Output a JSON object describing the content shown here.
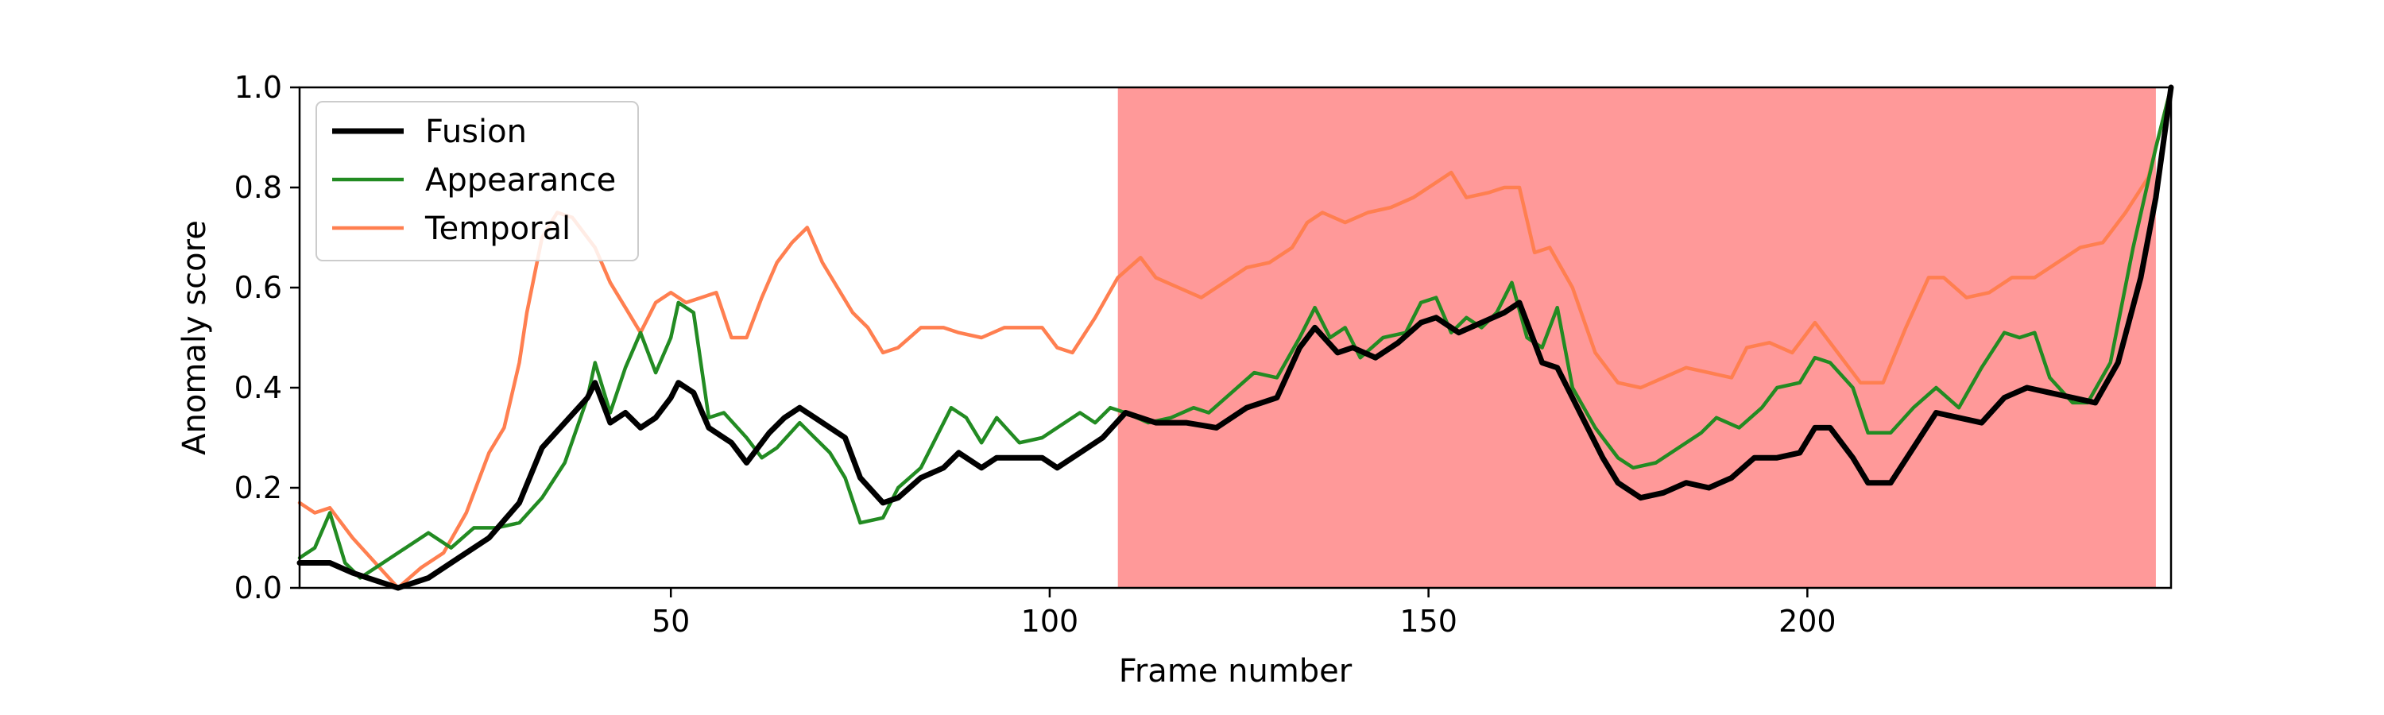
{
  "chart_data": {
    "type": "line",
    "title": "",
    "xlabel": "Frame number",
    "ylabel": "Anomaly score",
    "xlim": [
      1,
      248
    ],
    "ylim": [
      0,
      1
    ],
    "xticks": [
      50,
      100,
      150,
      200
    ],
    "yticks": [
      "0.0",
      "0.2",
      "0.4",
      "0.6",
      "0.8",
      "1.0"
    ],
    "grid": false,
    "legend_position": "top-left",
    "shaded_region": {
      "x_start": 109,
      "x_end": 246,
      "color": "#ff9999"
    },
    "series": [
      {
        "name": "Fusion",
        "color": "#000000",
        "points": [
          [
            1,
            0.05
          ],
          [
            5,
            0.05
          ],
          [
            8,
            0.03
          ],
          [
            10,
            0.02
          ],
          [
            14,
            0.0
          ],
          [
            18,
            0.02
          ],
          [
            22,
            0.06
          ],
          [
            26,
            0.1
          ],
          [
            30,
            0.17
          ],
          [
            33,
            0.28
          ],
          [
            36,
            0.33
          ],
          [
            39,
            0.38
          ],
          [
            40,
            0.41
          ],
          [
            42,
            0.33
          ],
          [
            44,
            0.35
          ],
          [
            46,
            0.32
          ],
          [
            48,
            0.34
          ],
          [
            50,
            0.38
          ],
          [
            51,
            0.41
          ],
          [
            53,
            0.39
          ],
          [
            55,
            0.32
          ],
          [
            58,
            0.29
          ],
          [
            60,
            0.25
          ],
          [
            63,
            0.31
          ],
          [
            65,
            0.34
          ],
          [
            67,
            0.36
          ],
          [
            70,
            0.33
          ],
          [
            73,
            0.3
          ],
          [
            75,
            0.22
          ],
          [
            78,
            0.17
          ],
          [
            80,
            0.18
          ],
          [
            83,
            0.22
          ],
          [
            86,
            0.24
          ],
          [
            88,
            0.27
          ],
          [
            91,
            0.24
          ],
          [
            93,
            0.26
          ],
          [
            96,
            0.26
          ],
          [
            99,
            0.26
          ],
          [
            101,
            0.24
          ],
          [
            104,
            0.27
          ],
          [
            107,
            0.3
          ],
          [
            110,
            0.35
          ],
          [
            114,
            0.33
          ],
          [
            118,
            0.33
          ],
          [
            122,
            0.32
          ],
          [
            126,
            0.36
          ],
          [
            130,
            0.38
          ],
          [
            133,
            0.48
          ],
          [
            135,
            0.52
          ],
          [
            138,
            0.47
          ],
          [
            140,
            0.48
          ],
          [
            143,
            0.46
          ],
          [
            146,
            0.49
          ],
          [
            149,
            0.53
          ],
          [
            151,
            0.54
          ],
          [
            154,
            0.51
          ],
          [
            157,
            0.53
          ],
          [
            160,
            0.55
          ],
          [
            162,
            0.57
          ],
          [
            165,
            0.45
          ],
          [
            167,
            0.44
          ],
          [
            170,
            0.35
          ],
          [
            173,
            0.26
          ],
          [
            175,
            0.21
          ],
          [
            178,
            0.18
          ],
          [
            181,
            0.19
          ],
          [
            184,
            0.21
          ],
          [
            187,
            0.2
          ],
          [
            190,
            0.22
          ],
          [
            193,
            0.26
          ],
          [
            196,
            0.26
          ],
          [
            199,
            0.27
          ],
          [
            201,
            0.32
          ],
          [
            203,
            0.32
          ],
          [
            206,
            0.26
          ],
          [
            208,
            0.21
          ],
          [
            211,
            0.21
          ],
          [
            214,
            0.28
          ],
          [
            217,
            0.35
          ],
          [
            220,
            0.34
          ],
          [
            223,
            0.33
          ],
          [
            226,
            0.38
          ],
          [
            229,
            0.4
          ],
          [
            232,
            0.39
          ],
          [
            235,
            0.38
          ],
          [
            238,
            0.37
          ],
          [
            241,
            0.45
          ],
          [
            244,
            0.62
          ],
          [
            246,
            0.78
          ],
          [
            248,
            1.0
          ]
        ]
      },
      {
        "name": "Appearance",
        "color": "#228b22",
        "points": [
          [
            1,
            0.06
          ],
          [
            3,
            0.08
          ],
          [
            5,
            0.15
          ],
          [
            7,
            0.05
          ],
          [
            9,
            0.02
          ],
          [
            12,
            0.05
          ],
          [
            15,
            0.08
          ],
          [
            18,
            0.11
          ],
          [
            21,
            0.08
          ],
          [
            24,
            0.12
          ],
          [
            27,
            0.12
          ],
          [
            30,
            0.13
          ],
          [
            33,
            0.18
          ],
          [
            36,
            0.25
          ],
          [
            39,
            0.38
          ],
          [
            40,
            0.45
          ],
          [
            42,
            0.35
          ],
          [
            44,
            0.44
          ],
          [
            46,
            0.51
          ],
          [
            48,
            0.43
          ],
          [
            50,
            0.5
          ],
          [
            51,
            0.57
          ],
          [
            53,
            0.55
          ],
          [
            55,
            0.34
          ],
          [
            57,
            0.35
          ],
          [
            60,
            0.3
          ],
          [
            62,
            0.26
          ],
          [
            64,
            0.28
          ],
          [
            67,
            0.33
          ],
          [
            69,
            0.3
          ],
          [
            71,
            0.27
          ],
          [
            73,
            0.22
          ],
          [
            75,
            0.13
          ],
          [
            78,
            0.14
          ],
          [
            80,
            0.2
          ],
          [
            83,
            0.24
          ],
          [
            85,
            0.3
          ],
          [
            87,
            0.36
          ],
          [
            89,
            0.34
          ],
          [
            91,
            0.29
          ],
          [
            93,
            0.34
          ],
          [
            96,
            0.29
          ],
          [
            99,
            0.3
          ],
          [
            101,
            0.32
          ],
          [
            104,
            0.35
          ],
          [
            106,
            0.33
          ],
          [
            108,
            0.36
          ],
          [
            110,
            0.35
          ],
          [
            113,
            0.33
          ],
          [
            116,
            0.34
          ],
          [
            119,
            0.36
          ],
          [
            121,
            0.35
          ],
          [
            124,
            0.39
          ],
          [
            127,
            0.43
          ],
          [
            130,
            0.42
          ],
          [
            133,
            0.5
          ],
          [
            135,
            0.56
          ],
          [
            137,
            0.5
          ],
          [
            139,
            0.52
          ],
          [
            141,
            0.46
          ],
          [
            144,
            0.5
          ],
          [
            147,
            0.51
          ],
          [
            149,
            0.57
          ],
          [
            151,
            0.58
          ],
          [
            153,
            0.51
          ],
          [
            155,
            0.54
          ],
          [
            157,
            0.52
          ],
          [
            159,
            0.55
          ],
          [
            161,
            0.61
          ],
          [
            163,
            0.5
          ],
          [
            165,
            0.48
          ],
          [
            167,
            0.56
          ],
          [
            169,
            0.4
          ],
          [
            172,
            0.32
          ],
          [
            175,
            0.26
          ],
          [
            177,
            0.24
          ],
          [
            180,
            0.25
          ],
          [
            183,
            0.28
          ],
          [
            186,
            0.31
          ],
          [
            188,
            0.34
          ],
          [
            191,
            0.32
          ],
          [
            194,
            0.36
          ],
          [
            196,
            0.4
          ],
          [
            199,
            0.41
          ],
          [
            201,
            0.46
          ],
          [
            203,
            0.45
          ],
          [
            206,
            0.4
          ],
          [
            208,
            0.31
          ],
          [
            211,
            0.31
          ],
          [
            214,
            0.36
          ],
          [
            217,
            0.4
          ],
          [
            220,
            0.36
          ],
          [
            223,
            0.44
          ],
          [
            226,
            0.51
          ],
          [
            228,
            0.5
          ],
          [
            230,
            0.51
          ],
          [
            232,
            0.42
          ],
          [
            235,
            0.37
          ],
          [
            237,
            0.37
          ],
          [
            240,
            0.45
          ],
          [
            243,
            0.68
          ],
          [
            246,
            0.88
          ],
          [
            248,
            1.0
          ]
        ]
      },
      {
        "name": "Temporal",
        "color": "#ff7f50",
        "points": [
          [
            1,
            0.17
          ],
          [
            3,
            0.15
          ],
          [
            5,
            0.16
          ],
          [
            8,
            0.1
          ],
          [
            11,
            0.05
          ],
          [
            14,
            0.0
          ],
          [
            17,
            0.04
          ],
          [
            20,
            0.07
          ],
          [
            23,
            0.15
          ],
          [
            26,
            0.27
          ],
          [
            28,
            0.32
          ],
          [
            30,
            0.45
          ],
          [
            31,
            0.55
          ],
          [
            33,
            0.7
          ],
          [
            35,
            0.75
          ],
          [
            37,
            0.74
          ],
          [
            40,
            0.68
          ],
          [
            42,
            0.61
          ],
          [
            44,
            0.56
          ],
          [
            46,
            0.51
          ],
          [
            48,
            0.57
          ],
          [
            50,
            0.59
          ],
          [
            52,
            0.57
          ],
          [
            54,
            0.58
          ],
          [
            56,
            0.59
          ],
          [
            58,
            0.5
          ],
          [
            60,
            0.5
          ],
          [
            62,
            0.58
          ],
          [
            64,
            0.65
          ],
          [
            66,
            0.69
          ],
          [
            68,
            0.72
          ],
          [
            70,
            0.65
          ],
          [
            72,
            0.6
          ],
          [
            74,
            0.55
          ],
          [
            76,
            0.52
          ],
          [
            78,
            0.47
          ],
          [
            80,
            0.48
          ],
          [
            83,
            0.52
          ],
          [
            86,
            0.52
          ],
          [
            88,
            0.51
          ],
          [
            91,
            0.5
          ],
          [
            94,
            0.52
          ],
          [
            97,
            0.52
          ],
          [
            99,
            0.52
          ],
          [
            101,
            0.48
          ],
          [
            103,
            0.47
          ],
          [
            106,
            0.54
          ],
          [
            109,
            0.62
          ],
          [
            112,
            0.66
          ],
          [
            114,
            0.62
          ],
          [
            117,
            0.6
          ],
          [
            120,
            0.58
          ],
          [
            123,
            0.61
          ],
          [
            126,
            0.64
          ],
          [
            129,
            0.65
          ],
          [
            132,
            0.68
          ],
          [
            134,
            0.73
          ],
          [
            136,
            0.75
          ],
          [
            139,
            0.73
          ],
          [
            142,
            0.75
          ],
          [
            145,
            0.76
          ],
          [
            148,
            0.78
          ],
          [
            151,
            0.81
          ],
          [
            153,
            0.83
          ],
          [
            155,
            0.78
          ],
          [
            158,
            0.79
          ],
          [
            160,
            0.8
          ],
          [
            162,
            0.8
          ],
          [
            164,
            0.67
          ],
          [
            166,
            0.68
          ],
          [
            169,
            0.6
          ],
          [
            172,
            0.47
          ],
          [
            175,
            0.41
          ],
          [
            178,
            0.4
          ],
          [
            181,
            0.42
          ],
          [
            184,
            0.44
          ],
          [
            187,
            0.43
          ],
          [
            190,
            0.42
          ],
          [
            192,
            0.48
          ],
          [
            195,
            0.49
          ],
          [
            198,
            0.47
          ],
          [
            201,
            0.53
          ],
          [
            204,
            0.47
          ],
          [
            207,
            0.41
          ],
          [
            210,
            0.41
          ],
          [
            213,
            0.52
          ],
          [
            216,
            0.62
          ],
          [
            218,
            0.62
          ],
          [
            221,
            0.58
          ],
          [
            224,
            0.59
          ],
          [
            227,
            0.62
          ],
          [
            230,
            0.62
          ],
          [
            233,
            0.65
          ],
          [
            236,
            0.68
          ],
          [
            239,
            0.69
          ],
          [
            242,
            0.75
          ],
          [
            245,
            0.82
          ],
          [
            248,
            1.0
          ]
        ]
      }
    ]
  }
}
